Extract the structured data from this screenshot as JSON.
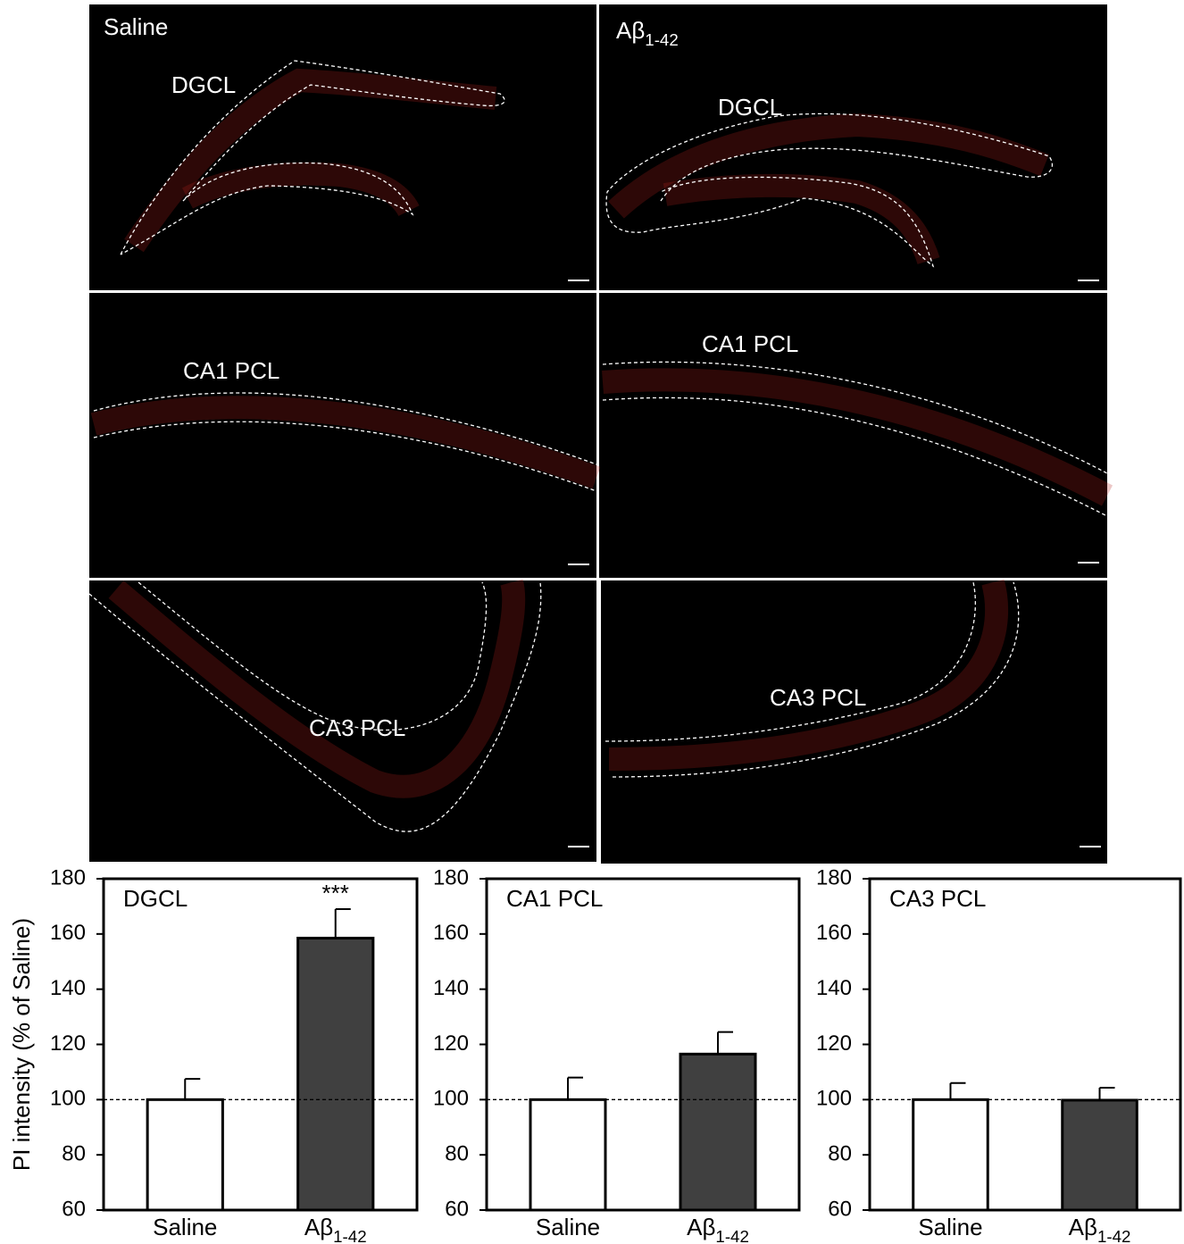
{
  "images": {
    "conditions": [
      "Saline",
      "Aβ1-42"
    ],
    "regions": [
      "DGCL",
      "CA1 PCL",
      "CA3 PCL"
    ]
  },
  "chart_data": [
    {
      "type": "bar",
      "title": "DGCL",
      "ylabel": "PI intensity (% of Saline)",
      "categories": [
        "Saline",
        "Aβ1-42"
      ],
      "values": [
        100,
        158.5
      ],
      "errors": [
        7.5,
        10.5
      ],
      "colors": [
        "#ffffff",
        "#404040"
      ],
      "ylim": [
        60,
        180
      ],
      "yticks": [
        60,
        80,
        100,
        120,
        140,
        160,
        180
      ],
      "refline": 100,
      "annotations": [
        {
          "text": "***",
          "index": 1
        }
      ]
    },
    {
      "type": "bar",
      "title": "CA1 PCL",
      "categories": [
        "Saline",
        "Aβ1-42"
      ],
      "values": [
        100,
        116.5
      ],
      "errors": [
        8,
        8
      ],
      "colors": [
        "#ffffff",
        "#404040"
      ],
      "ylim": [
        60,
        180
      ],
      "yticks": [
        60,
        80,
        100,
        120,
        140,
        160,
        180
      ],
      "refline": 100
    },
    {
      "type": "bar",
      "title": "CA3 PCL",
      "categories": [
        "Saline",
        "Aβ1-42"
      ],
      "values": [
        100,
        99.8
      ],
      "errors": [
        6,
        4.5
      ],
      "colors": [
        "#ffffff",
        "#404040"
      ],
      "ylim": [
        60,
        180
      ],
      "yticks": [
        60,
        80,
        100,
        120,
        140,
        160,
        180
      ],
      "refline": 100
    }
  ]
}
